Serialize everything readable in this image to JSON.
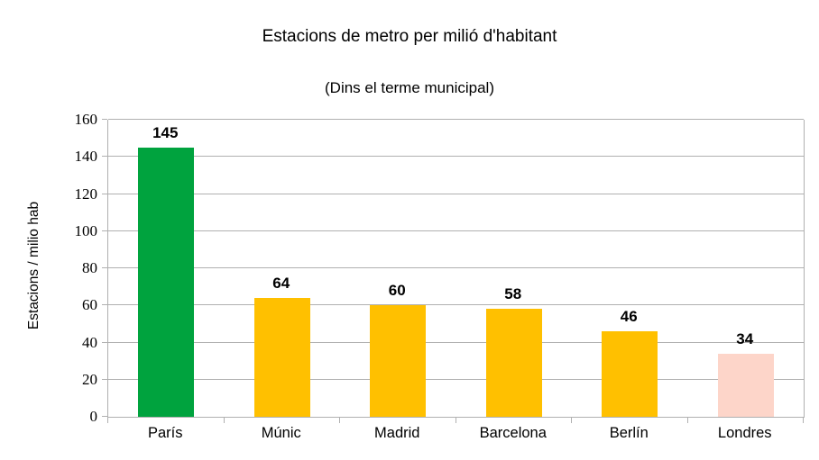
{
  "chart_data": {
    "type": "bar",
    "title": "Estacions de metro per milió d'habitant",
    "subtitle": "(Dins el terme municipal)",
    "ylabel": "Estacions / milio hab",
    "xlabel": "",
    "categories": [
      "París",
      "Múnic",
      "Madrid",
      "Barcelona",
      "Berlín",
      "Londres"
    ],
    "values": [
      145,
      64,
      60,
      58,
      46,
      34
    ],
    "bar_colors": [
      "#00a33e",
      "#ffc000",
      "#ffc000",
      "#ffc000",
      "#ffc000",
      "#fdd5c9"
    ],
    "ylim": [
      0,
      160
    ],
    "yticks": [
      0,
      20,
      40,
      60,
      80,
      100,
      120,
      140,
      160
    ],
    "grid": "horizontal",
    "grid_color": "#b0b0b0",
    "legend": "none",
    "value_labels": "above-bars"
  }
}
